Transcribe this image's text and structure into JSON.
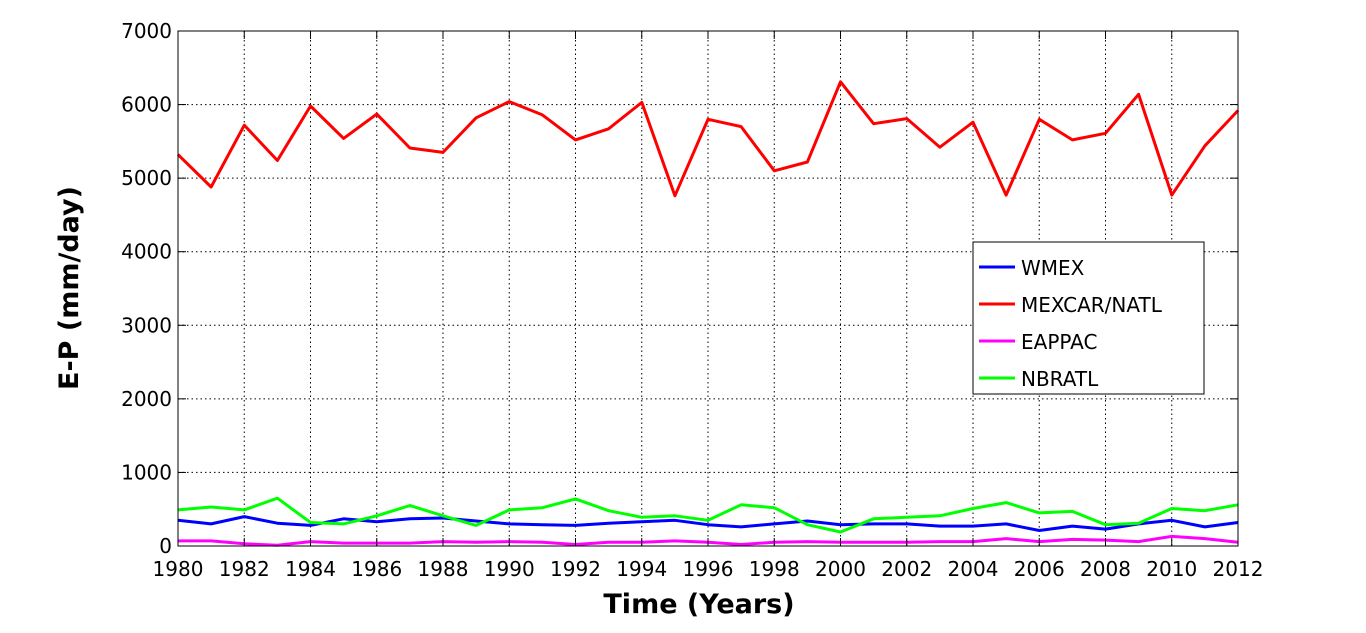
{
  "chart_data": {
    "type": "line",
    "title": "",
    "xlabel": "Time (Years)",
    "ylabel": "E-P (mm/day)",
    "xlim": [
      1980,
      2012
    ],
    "ylim": [
      0,
      7000
    ],
    "xticks": [
      1980,
      1982,
      1984,
      1986,
      1988,
      1990,
      1992,
      1994,
      1996,
      1998,
      2000,
      2002,
      2004,
      2006,
      2008,
      2010,
      2012
    ],
    "yticks": [
      0,
      1000,
      2000,
      3000,
      4000,
      5000,
      6000,
      7000
    ],
    "grid": true,
    "legend_position": "right",
    "x": [
      1980,
      1981,
      1982,
      1983,
      1984,
      1985,
      1986,
      1987,
      1988,
      1989,
      1990,
      1991,
      1992,
      1993,
      1994,
      1995,
      1996,
      1997,
      1998,
      1999,
      2000,
      2001,
      2002,
      2003,
      2004,
      2005,
      2006,
      2007,
      2008,
      2009,
      2010,
      2011,
      2012
    ],
    "series": [
      {
        "name": "WMEX",
        "color": "#0000ff",
        "values": [
          350,
          300,
          400,
          310,
          280,
          370,
          330,
          370,
          380,
          340,
          300,
          290,
          280,
          310,
          330,
          350,
          290,
          260,
          300,
          340,
          290,
          300,
          300,
          270,
          270,
          300,
          210,
          270,
          230,
          300,
          350,
          260,
          320
        ]
      },
      {
        "name": "MEXCAR/NATL",
        "color": "#ff0000",
        "values": [
          5320,
          4880,
          5720,
          5240,
          5980,
          5540,
          5870,
          5410,
          5350,
          5820,
          6040,
          5860,
          5520,
          5670,
          6030,
          4760,
          5800,
          5700,
          5100,
          5220,
          6310,
          5740,
          5810,
          5420,
          5760,
          4770,
          5800,
          5520,
          5610,
          6140,
          4770,
          5440,
          5920
        ]
      },
      {
        "name": "EAPPAC",
        "color": "#ff00ff",
        "values": [
          70,
          70,
          30,
          10,
          60,
          40,
          40,
          40,
          60,
          50,
          60,
          50,
          20,
          50,
          50,
          70,
          50,
          20,
          50,
          60,
          50,
          50,
          50,
          60,
          60,
          100,
          60,
          90,
          80,
          60,
          130,
          100,
          50
        ]
      },
      {
        "name": "NBRATL",
        "color": "#00ff00",
        "values": [
          490,
          530,
          490,
          650,
          320,
          300,
          410,
          550,
          410,
          280,
          490,
          520,
          640,
          480,
          390,
          410,
          350,
          560,
          520,
          290,
          190,
          370,
          390,
          410,
          510,
          590,
          450,
          470,
          290,
          310,
          510,
          480,
          560
        ]
      }
    ]
  }
}
